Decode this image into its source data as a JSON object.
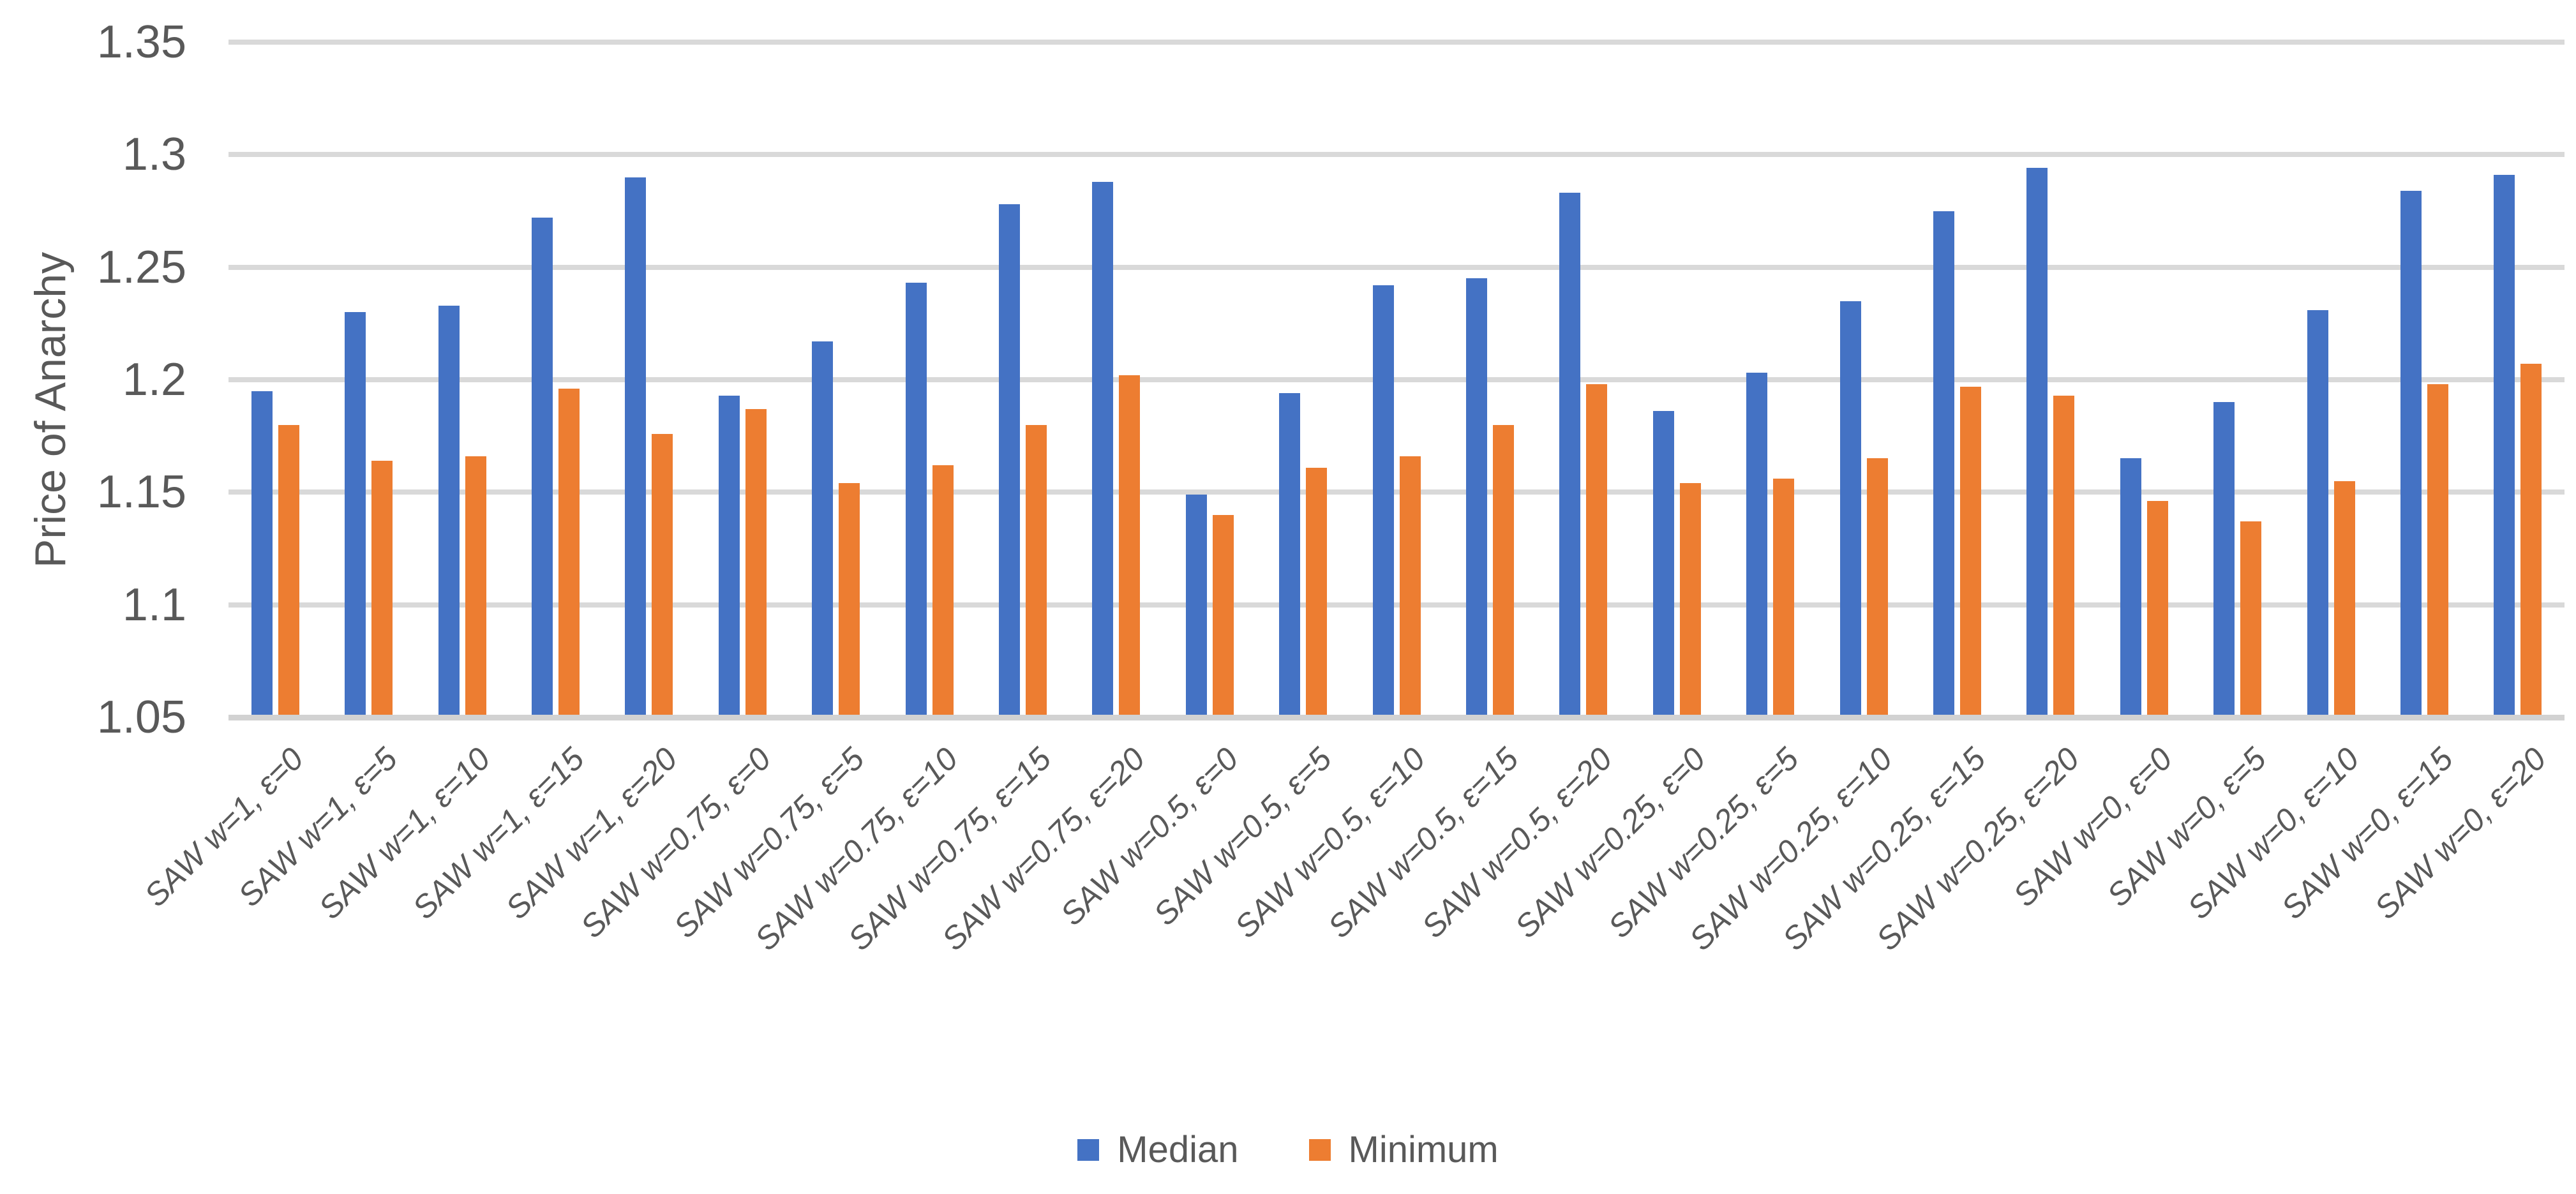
{
  "chart_data": {
    "type": "bar",
    "title": "",
    "xlabel": "",
    "ylabel": "Price of Anarchy",
    "ylim": [
      1.05,
      1.35
    ],
    "ytick_labels": [
      "1.05",
      "1.1",
      "1.15",
      "1.2",
      "1.25",
      "1.3",
      "1.35"
    ],
    "grid": true,
    "legend_position": "bottom",
    "categories": [
      "SAW w=1, ε=0",
      "SAW w=1, ε=5",
      "SAW w=1, ε=10",
      "SAW w=1, ε=15",
      "SAW w=1, ε=20",
      "SAW w=0.75, ε=0",
      "SAW w=0.75, ε=5",
      "SAW w=0.75, ε=10",
      "SAW w=0.75, ε=15",
      "SAW w=0.75, ε=20",
      "SAW w=0.5, ε=0",
      "SAW w=0.5, ε=5",
      "SAW w=0.5, ε=10",
      "SAW w=0.5, ε=15",
      "SAW w=0.5, ε=20",
      "SAW w=0.25, ε=0",
      "SAW w=0.25, ε=5",
      "SAW w=0.25, ε=10",
      "SAW w=0.25, ε=15",
      "SAW w=0.25, ε=20",
      "SAW w=0, ε=0",
      "SAW w=0, ε=5",
      "SAW w=0, ε=10",
      "SAW w=0, ε=15",
      "SAW w=0, ε=20"
    ],
    "series": [
      {
        "name": "Median",
        "color": "#4472C4",
        "values": [
          1.195,
          1.23,
          1.233,
          1.272,
          1.29,
          1.193,
          1.217,
          1.243,
          1.278,
          1.288,
          1.149,
          1.194,
          1.242,
          1.245,
          1.283,
          1.186,
          1.203,
          1.235,
          1.275,
          1.294,
          1.165,
          1.19,
          1.231,
          1.284,
          1.291
        ]
      },
      {
        "name": "Minimum",
        "color": "#ED7D31",
        "values": [
          1.18,
          1.164,
          1.166,
          1.196,
          1.176,
          1.187,
          1.154,
          1.162,
          1.18,
          1.202,
          1.14,
          1.161,
          1.166,
          1.18,
          1.198,
          1.154,
          1.156,
          1.165,
          1.197,
          1.193,
          1.146,
          1.137,
          1.155,
          1.198,
          1.207
        ]
      }
    ]
  },
  "colors": {
    "median": "#4472C4",
    "minimum": "#ED7D31",
    "text": "#595959",
    "gridline": "#D9D9D9",
    "axis_line": "#D2D2D2",
    "background": "#FFFFFF"
  },
  "legend": {
    "items": [
      {
        "label": "Median",
        "color": "#4472C4"
      },
      {
        "label": "Minimum",
        "color": "#ED7D31"
      }
    ]
  }
}
